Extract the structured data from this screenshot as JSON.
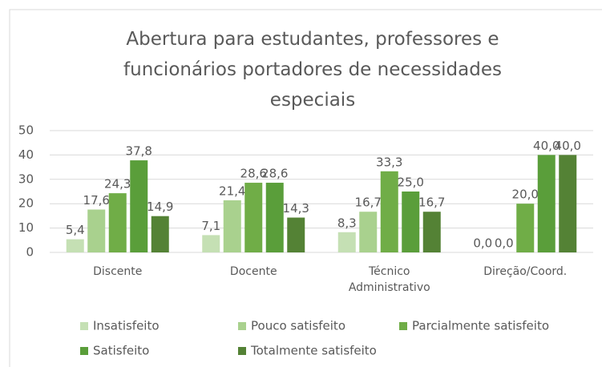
{
  "chart_data": {
    "type": "bar",
    "title": "Abertura para estudantes, professores e funcionários portadores de necessidades especiais",
    "categories": [
      "Discente",
      "Docente",
      "Técnico Administrativo",
      "Direção/Coord."
    ],
    "series": [
      {
        "name": "Insatisfeito",
        "color": "#c5e0b4",
        "values": [
          5.4,
          7.1,
          8.3,
          0
        ],
        "value_labels": [
          "5,4",
          "7,1",
          "8,3",
          "0,0"
        ]
      },
      {
        "name": "Pouco satisfeito",
        "color": "#a9d18e",
        "values": [
          17.6,
          21.4,
          16.7,
          0
        ],
        "value_labels": [
          "17,6",
          "21,4",
          "16,7",
          "0,0"
        ]
      },
      {
        "name": "Parcialmente satisfeito",
        "color": "#70ad47",
        "values": [
          24.3,
          28.6,
          33.3,
          20
        ],
        "value_labels": [
          "24,3",
          "28,6",
          "33,3",
          "20,0"
        ]
      },
      {
        "name": "Satisfeito",
        "color": "#5a9e3a",
        "values": [
          37.8,
          28.6,
          25,
          40
        ],
        "value_labels": [
          "37,8",
          "28,6",
          "25,0",
          "40,0"
        ]
      },
      {
        "name": "Totalmente satisfeito",
        "color": "#548235",
        "values": [
          14.9,
          14.3,
          16.7,
          40
        ],
        "value_labels": [
          "14,9",
          "14,3",
          "16,7",
          "40,0"
        ]
      }
    ],
    "ylim": [
      0,
      50
    ],
    "yticks": [
      0,
      10,
      20,
      30,
      40,
      50
    ],
    "grid": true,
    "legend": "bottom"
  }
}
